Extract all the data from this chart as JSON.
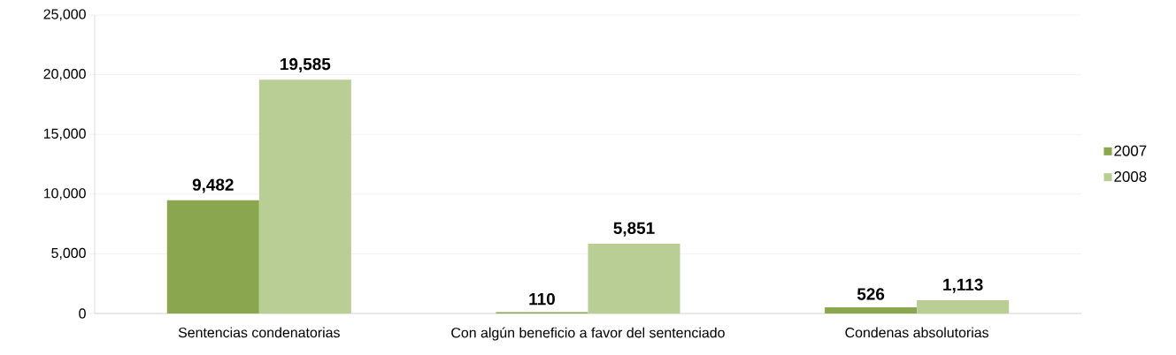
{
  "chart_data": {
    "type": "bar",
    "categories": [
      "Sentencias condenatorias",
      "Con algún beneficio a favor del sentenciado",
      "Condenas absolutorias"
    ],
    "series": [
      {
        "name": "2007",
        "color": "#8aa64f",
        "values": [
          9482,
          110,
          526
        ],
        "value_labels": [
          "9,482",
          "110",
          "526"
        ]
      },
      {
        "name": "2008",
        "color": "#b8ce95",
        "values": [
          19585,
          5851,
          1113
        ],
        "value_labels": [
          "19,585",
          "5,851",
          "1,113"
        ]
      }
    ],
    "ylim": [
      0,
      25000
    ],
    "yticks": [
      {
        "value": 0,
        "label": "0"
      },
      {
        "value": 5000,
        "label": "5,000"
      },
      {
        "value": 10000,
        "label": "10,000"
      },
      {
        "value": 15000,
        "label": "15,000"
      },
      {
        "value": 20000,
        "label": "20,000"
      },
      {
        "value": 25000,
        "label": "25,000"
      }
    ],
    "grid": "y",
    "legend": "right"
  }
}
